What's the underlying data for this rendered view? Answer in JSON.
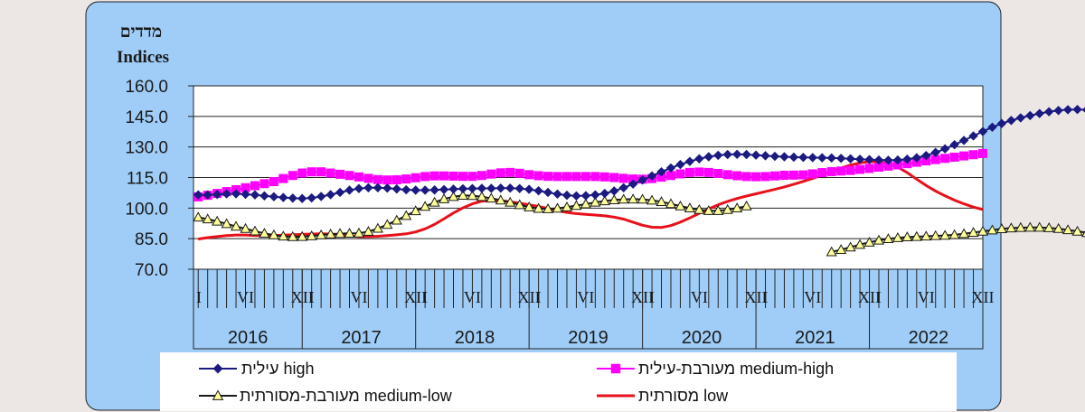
{
  "chart_data": {
    "type": "line",
    "title_he": "מדדים",
    "title_en": "Indices",
    "ylim": [
      70,
      160
    ],
    "yticks": [
      "160.0",
      "145.0",
      "130.0",
      "115.0",
      "100.0",
      "85.0",
      "70.0"
    ],
    "grid": "horizontal",
    "month_labels": [
      "I",
      "VI",
      "XII"
    ],
    "years": [
      "2016",
      "2017",
      "2018",
      "2019",
      "2020",
      "2021",
      "2022"
    ],
    "x_start": "2016-01",
    "x_end": "2022-12",
    "legend_position": "bottom",
    "series": [
      {
        "name": "עילית high",
        "color": "#1a1a80",
        "marker": "diamond",
        "monthly_values": [
          106.5,
          106.5,
          106.7,
          107,
          107,
          106.8,
          106.5,
          106,
          105.6,
          105.2,
          104.9,
          104.7,
          105,
          105.7,
          106.6,
          107.7,
          108.8,
          109.6,
          110,
          110,
          109.8,
          109.4,
          109,
          108.8,
          108.8,
          108.9,
          109.1,
          109.3,
          109.5,
          109.6,
          109.7,
          109.7,
          109.8,
          109.8,
          109.6,
          109.2,
          108.5,
          107.7,
          106.9,
          106.3,
          106,
          106.1,
          106.5,
          107.2,
          108.4,
          110,
          111.8,
          113.8,
          115.8,
          117.8,
          119.7,
          121.4,
          122.9,
          124.2,
          125.2,
          125.9,
          126.3,
          126.4,
          126.3,
          126,
          125.7,
          125.4,
          125.2,
          125,
          124.9,
          124.8,
          124.7,
          124.6,
          124.4,
          124.2,
          124,
          123.8,
          123.6,
          123.5,
          123.6,
          124,
          124.7,
          125.8,
          127.3,
          129.1,
          131.1,
          133.2,
          135.4,
          137.6,
          139.7,
          141.5,
          143,
          144.3,
          145.4,
          146.4,
          147.3,
          147.9,
          148.3,
          148.4,
          148.2,
          147.6
        ]
      },
      {
        "name": "מעורבת-עילית medium-high",
        "color": "#ff00ff",
        "marker": "square",
        "monthly_values": [
          105.5,
          106.3,
          107.2,
          108.1,
          109,
          110,
          111,
          112,
          113,
          114.5,
          116,
          117.2,
          117.8,
          117.8,
          117.2,
          116.6,
          116,
          115.3,
          114.6,
          114,
          113.8,
          113.9,
          114.3,
          114.9,
          115.5,
          115.8,
          115.8,
          115.7,
          115.6,
          115.6,
          116,
          116.7,
          117.3,
          117.5,
          117.1,
          116.4,
          115.9,
          115.6,
          115.5,
          115.5,
          115.5,
          115.5,
          115.5,
          115.3,
          115,
          114.6,
          114.3,
          114.2,
          114.5,
          115.2,
          116,
          116.8,
          117.5,
          117.7,
          117.5,
          117,
          116.4,
          115.9,
          115.5,
          115.4,
          115.5,
          115.8,
          116.1,
          116.2,
          116.3,
          116.8,
          117.4,
          117.9,
          118.2,
          118.5,
          119,
          119.5,
          120.1,
          120.6,
          121.2,
          121.8,
          122.5,
          123.2,
          123.8,
          124.4,
          125,
          125.6,
          126.2,
          126.8
        ]
      },
      {
        "name": "מעורבת-מסורתית medium-low",
        "color": "#1a1a1a",
        "fill": "#ffff99",
        "marker": "triangle",
        "monthly_values": [
          95.5,
          94.6,
          93.5,
          92.3,
          91,
          89.9,
          88.7,
          87.6,
          86.8,
          86.2,
          85.9,
          86,
          86.3,
          86.8,
          87.2,
          87.5,
          87.6,
          87.7,
          88.5,
          90,
          91.9,
          94,
          96.3,
          98.6,
          100.8,
          102.8,
          104.5,
          105.6,
          106.2,
          106.1,
          105.6,
          104.8,
          103.9,
          102.8,
          101.6,
          100.5,
          99.8,
          99.6,
          99.9,
          100.5,
          101.2,
          102,
          102.8,
          103.5,
          104,
          104.3,
          104.4,
          104.3,
          103.8,
          103.1,
          102.1,
          101,
          100,
          99.2,
          98.7,
          98.7,
          99.2,
          100,
          101,
          null,
          null,
          null,
          null,
          null,
          null,
          null,
          null,
          78.5,
          79.6,
          80.8,
          82.1,
          83.2,
          84.2,
          84.9,
          85.4,
          85.8,
          86,
          86.2,
          86.4,
          86.6,
          86.9,
          87.4,
          88,
          88.6,
          89.2,
          89.8,
          90.2,
          90.4,
          90.5,
          90.5,
          90.3,
          89.9,
          89.3,
          88.6,
          87.9,
          87.3,
          86.8,
          86.4,
          86.2,
          86.1,
          86.1,
          86,
          85.9,
          85.8,
          85.7
        ]
      },
      {
        "name": "מסורתית low",
        "color": "#e8101a",
        "marker": "none",
        "monthly_values": [
          84.8,
          85.5,
          86,
          86.5,
          86.8,
          86.8,
          86.6,
          86.5,
          86.5,
          86.7,
          86.9,
          87.1,
          87.3,
          87.4,
          87.3,
          86.9,
          86.4,
          86,
          86,
          86.2,
          86.5,
          86.9,
          87.4,
          88.3,
          89.8,
          92,
          94.8,
          97.6,
          100.1,
          102.1,
          103.4,
          103.8,
          103.6,
          103.1,
          102.4,
          101.6,
          100.8,
          99.8,
          98.8,
          97.9,
          97.3,
          96.9,
          96.6,
          96.2,
          95.6,
          94.6,
          93.1,
          91.6,
          90.6,
          90.5,
          91.4,
          93.1,
          95.2,
          97.4,
          99.6,
          101.6,
          103.3,
          104.7,
          105.9,
          107,
          108.1,
          109.2,
          110.4,
          111.7,
          113.1,
          114.6,
          116.2,
          117.9,
          119.6,
          121.1,
          122.2,
          122.8,
          122.7,
          121.9,
          120.1,
          117.4,
          114.2,
          111.1,
          108.4,
          106,
          103.9,
          102.1,
          100.5,
          99.3
        ]
      }
    ]
  }
}
